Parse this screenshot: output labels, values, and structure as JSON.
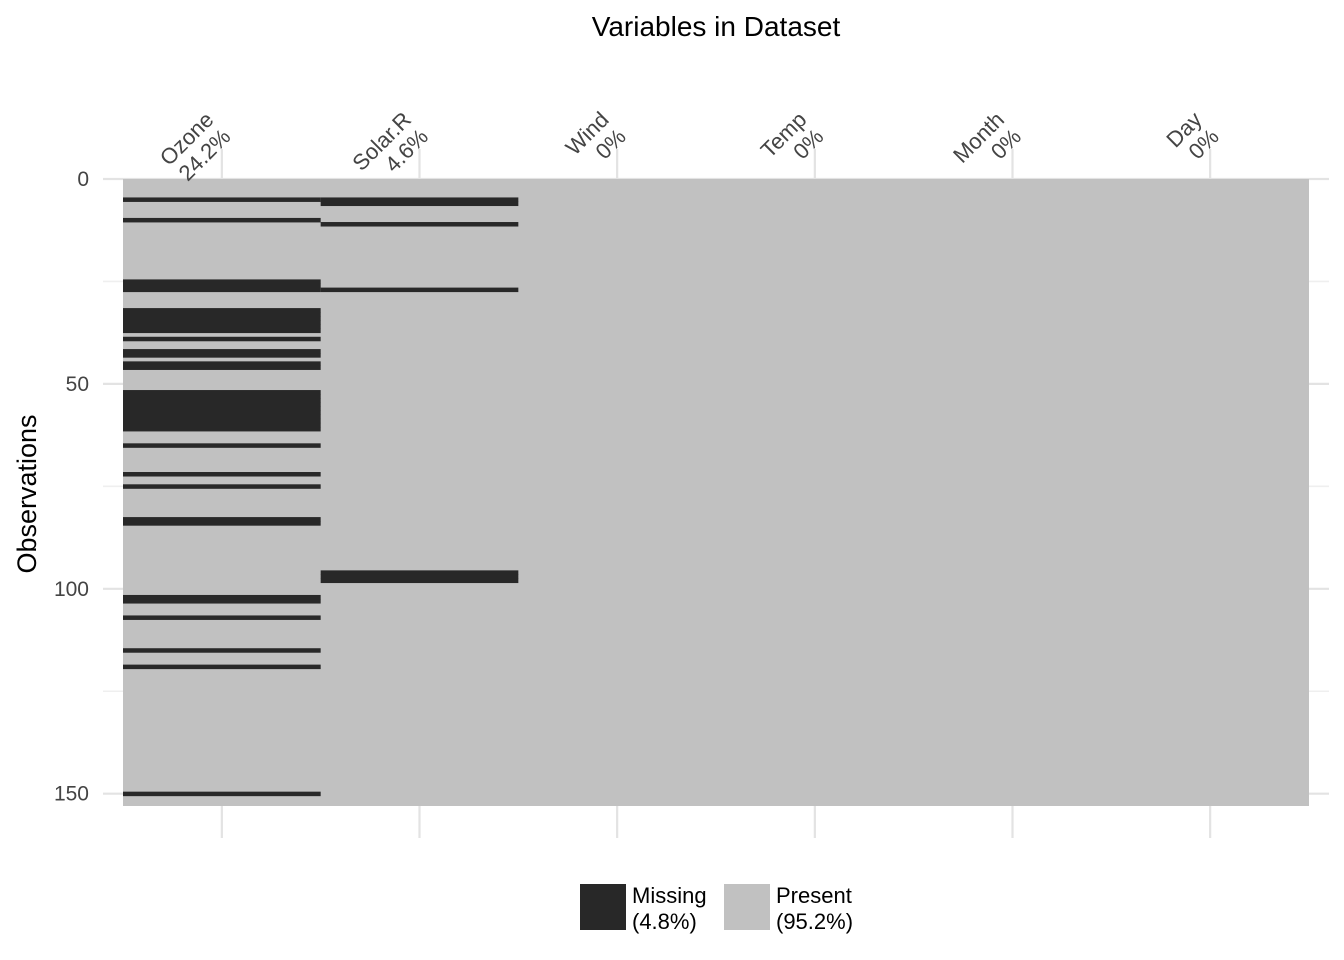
{
  "chart_data": {
    "type": "heatmap",
    "title": "Variables in Dataset",
    "xlabel": "",
    "ylabel": "Observations",
    "n_obs": 153,
    "ylim": [
      0,
      153
    ],
    "y_ticks": [
      0,
      50,
      100,
      150
    ],
    "grid": true,
    "variables": [
      {
        "name": "Ozone",
        "pct": "24.2%",
        "missing_rows": [
          5,
          10,
          25,
          26,
          27,
          32,
          33,
          34,
          35,
          36,
          37,
          39,
          42,
          43,
          45,
          46,
          52,
          53,
          54,
          55,
          56,
          57,
          58,
          59,
          60,
          61,
          65,
          72,
          75,
          83,
          84,
          102,
          103,
          107,
          115,
          119,
          150
        ]
      },
      {
        "name": "Solar.R",
        "pct": "4.6%",
        "missing_rows": [
          5,
          6,
          11,
          27,
          96,
          97,
          98
        ]
      },
      {
        "name": "Wind",
        "pct": "0%",
        "missing_rows": []
      },
      {
        "name": "Temp",
        "pct": "0%",
        "missing_rows": []
      },
      {
        "name": "Month",
        "pct": "0%",
        "missing_rows": []
      },
      {
        "name": "Day",
        "pct": "0%",
        "missing_rows": []
      }
    ],
    "legend": {
      "position": "bottom",
      "items": [
        {
          "label": "Missing",
          "pct": "(4.8%)",
          "color": "#282828"
        },
        {
          "label": "Present",
          "pct": "(95.2%)",
          "color": "#c1c1c1"
        }
      ]
    }
  }
}
